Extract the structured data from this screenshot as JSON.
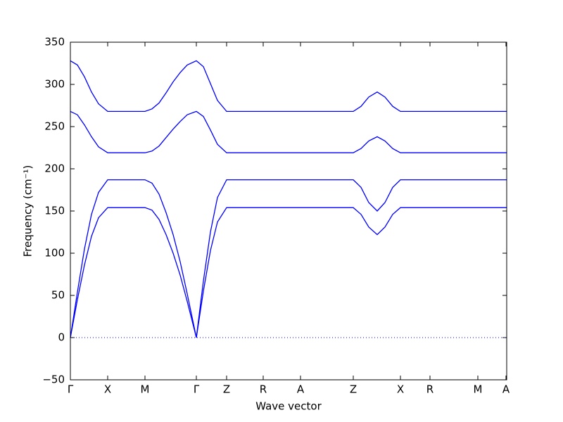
{
  "chart_data": {
    "type": "line",
    "xlabel": "Wave vector",
    "ylabel": "Frequency (cm⁻¹)",
    "x": [
      0,
      10,
      20,
      30,
      40,
      53,
      106,
      116,
      126,
      136,
      146,
      156,
      166,
      179,
      189,
      199,
      209,
      222,
      402,
      413,
      424,
      436,
      447,
      458,
      469,
      620
    ],
    "series": [
      {
        "color": "#0000ff",
        "values": [
          0,
          45,
          86,
          120,
          142,
          154,
          154,
          151,
          140,
          122,
          100,
          74,
          43,
          0,
          55,
          103,
          137,
          154,
          154,
          146,
          131,
          122,
          131,
          146,
          154,
          154
        ]
      },
      {
        "color": "#0000ff",
        "values": [
          0,
          54,
          105,
          146,
          172,
          187,
          187,
          183,
          170,
          148,
          122,
          90,
          52,
          0,
          67,
          125,
          166,
          187,
          187,
          178,
          160,
          150,
          160,
          178,
          187,
          187
        ]
      },
      {
        "color": "#0000ff",
        "values": [
          268,
          264,
          252,
          238,
          226,
          219,
          219,
          221,
          227,
          237,
          247,
          256,
          264,
          268,
          262,
          246,
          229,
          219,
          219,
          224,
          233,
          238,
          233,
          224,
          219,
          219
        ]
      },
      {
        "color": "#0000ff",
        "values": [
          328,
          323,
          309,
          291,
          277,
          268,
          268,
          271,
          278,
          290,
          303,
          314,
          323,
          328,
          321,
          301,
          281,
          268,
          268,
          274,
          285,
          291,
          285,
          274,
          268,
          268
        ]
      }
    ],
    "xlim": [
      0,
      620
    ],
    "xticks": [
      {
        "value": 0,
        "label": "Γ"
      },
      {
        "value": 53,
        "label": "X"
      },
      {
        "value": 106,
        "label": "M"
      },
      {
        "value": 179,
        "label": "Γ"
      },
      {
        "value": 222,
        "label": "Z"
      },
      {
        "value": 274,
        "label": "R"
      },
      {
        "value": 327,
        "label": "A"
      },
      {
        "value": 402,
        "label": "Z"
      },
      {
        "value": 469,
        "label": "X"
      },
      {
        "value": 511,
        "label": "R"
      },
      {
        "value": 579,
        "label": "M"
      },
      {
        "value": 619,
        "label": "A"
      }
    ],
    "ylim": [
      -50,
      350
    ],
    "yticks": [
      {
        "value": -50,
        "label": "−50"
      },
      0,
      50,
      100,
      150,
      200,
      250,
      300,
      350
    ],
    "reference_line": 0,
    "grid": false
  }
}
